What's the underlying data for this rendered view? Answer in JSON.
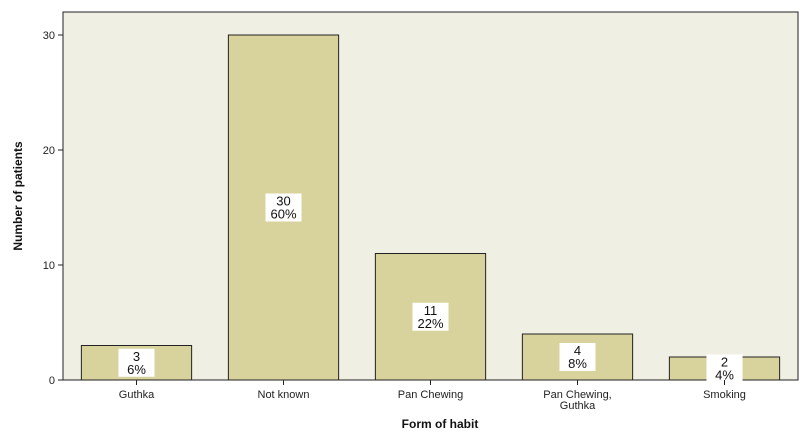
{
  "chart_data": {
    "type": "bar",
    "categories": [
      [
        "Guthka"
      ],
      [
        "Not known"
      ],
      [
        "Pan Chewing"
      ],
      [
        "Pan Chewing,",
        "Guthka"
      ],
      [
        "Smoking"
      ]
    ],
    "values": [
      3,
      30,
      11,
      4,
      2
    ],
    "percent_labels": [
      "6%",
      "60%",
      "22%",
      "8%",
      "4%"
    ],
    "xlabel": "Form of habit",
    "ylabel": "Number of patients",
    "ylim": [
      0,
      32
    ],
    "yticks": [
      0,
      10,
      20,
      30
    ],
    "grid": false,
    "legend": "none",
    "colors": {
      "plot_background": "#f0efe3",
      "bar_fill": "#d8d39c",
      "bar_stroke": "#222222",
      "label_background": "#ffffff",
      "axis": "#222222"
    }
  }
}
